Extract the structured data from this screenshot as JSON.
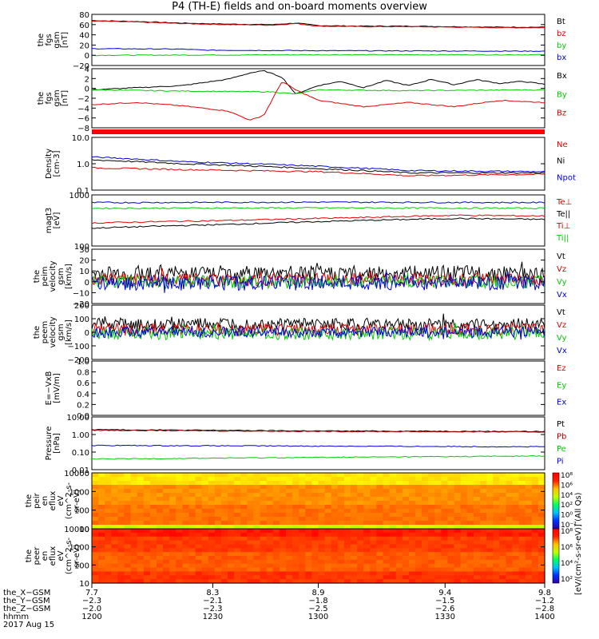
{
  "title": "P4 (TH-E) fields and on-board moments overview",
  "colors": {
    "black": "#000000",
    "red": "#e00000",
    "green": "#00cc00",
    "blue": "#0000dd",
    "darkred": "#aa0000"
  },
  "chart_data": [
    {
      "type": "line",
      "id": "fgs",
      "ylabel_lines": [
        "the",
        "fgs",
        "gsm",
        "[nT]"
      ],
      "ylim": [
        -20,
        80
      ],
      "yticks": [
        "80",
        "60",
        "40",
        "20",
        "0",
        "−20"
      ],
      "legend": [
        {
          "label": "Bt",
          "color": "#000000"
        },
        {
          "label": "bz",
          "color": "#e00000"
        },
        {
          "label": "by",
          "color": "#00cc00"
        },
        {
          "label": "bx",
          "color": "#0000dd"
        }
      ],
      "series": [
        {
          "name": "Bt",
          "color": "#000000",
          "x": [
            0,
            0.1,
            0.2,
            0.3,
            0.4,
            0.45,
            0.5,
            0.6,
            0.7,
            0.8,
            0.9,
            1
          ],
          "y": [
            68,
            66,
            63,
            61,
            60,
            63,
            58,
            57,
            57,
            56,
            55,
            55
          ]
        },
        {
          "name": "bz",
          "color": "#e00000",
          "x": [
            0,
            0.1,
            0.2,
            0.3,
            0.4,
            0.45,
            0.5,
            0.6,
            0.7,
            0.8,
            0.9,
            1
          ],
          "y": [
            67,
            65,
            62,
            60,
            59,
            62,
            57,
            56,
            56,
            55,
            54,
            54
          ]
        },
        {
          "name": "by",
          "color": "#00cc00",
          "x": [
            0,
            0.5,
            1
          ],
          "y": [
            0,
            1,
            1
          ]
        },
        {
          "name": "bx",
          "color": "#0000dd",
          "x": [
            0,
            0.2,
            0.25,
            0.5,
            1
          ],
          "y": [
            13,
            12,
            10,
            9,
            8
          ]
        }
      ]
    },
    {
      "type": "line",
      "id": "fgs_gse",
      "ylabel_lines": [
        "the",
        "fgs",
        "gsm",
        "[nT]"
      ],
      "ylim": [
        -10,
        4
      ],
      "yticks": [
        "4",
        "2",
        "0",
        "−2",
        "−4",
        "−6",
        "−8"
      ],
      "legend": [
        {
          "label": "Bx",
          "color": "#000000"
        },
        {
          "label": "By",
          "color": "#00cc00"
        },
        {
          "label": "Bz",
          "color": "#e00000"
        }
      ],
      "series": [
        {
          "name": "Bx",
          "color": "#000000",
          "x": [
            0,
            0.1,
            0.2,
            0.3,
            0.35,
            0.38,
            0.42,
            0.45,
            0.5,
            0.55,
            0.6,
            0.65,
            0.7,
            0.75,
            0.8,
            0.85,
            0.9,
            0.95,
            1
          ],
          "y": [
            -1,
            -0.5,
            0,
            1.5,
            3,
            3.5,
            2,
            -2,
            0,
            1,
            -0.5,
            1.2,
            0,
            1.5,
            0.2,
            1.4,
            0.5,
            1,
            0.3
          ]
        },
        {
          "name": "By",
          "color": "#00cc00",
          "x": [
            0,
            0.2,
            0.4,
            0.45,
            0.5,
            0.7,
            1
          ],
          "y": [
            -1,
            -1.3,
            -1.5,
            -2,
            -1,
            -1.2,
            -1
          ]
        },
        {
          "name": "Bz",
          "color": "#e00000",
          "x": [
            0,
            0.1,
            0.2,
            0.3,
            0.35,
            0.38,
            0.42,
            0.45,
            0.5,
            0.6,
            0.7,
            0.8,
            0.9,
            1
          ],
          "y": [
            -4.5,
            -4,
            -4.8,
            -6,
            -8.2,
            -7,
            1,
            -1,
            -3.5,
            -5,
            -4,
            -5,
            -3.5,
            -4
          ]
        }
      ]
    },
    {
      "type": "line",
      "id": "density",
      "ylabel_lines": [
        "Density",
        "[cm-3]"
      ],
      "yscale": "log",
      "ylim": [
        0.1,
        10
      ],
      "yticks": [
        "10.0",
        "1.0",
        "0.1"
      ],
      "legend": [
        {
          "label": "Ne",
          "color": "#e00000"
        },
        {
          "label": "Ni",
          "color": "#000000"
        },
        {
          "label": "Npot",
          "color": "#0000dd"
        }
      ],
      "series": [
        {
          "name": "Ne",
          "color": "#e00000",
          "x": [
            0,
            0.2,
            0.5,
            0.7,
            1
          ],
          "y": [
            0.7,
            0.6,
            0.5,
            0.35,
            0.4
          ]
        },
        {
          "name": "Ni",
          "color": "#000000",
          "x": [
            0,
            0.2,
            0.5,
            0.7,
            1
          ],
          "y": [
            1.4,
            1.0,
            0.65,
            0.45,
            0.45
          ]
        },
        {
          "name": "Npot",
          "color": "#0000dd",
          "x": [
            0,
            0.2,
            0.5,
            0.7,
            1
          ],
          "y": [
            1.8,
            1.2,
            0.8,
            0.55,
            0.5
          ]
        }
      ]
    },
    {
      "type": "line",
      "id": "temperature",
      "ylabel_lines": [
        "magt3",
        "[eV]"
      ],
      "yscale": "log",
      "ylim": [
        100,
        10000
      ],
      "yticks": [
        "1000",
        "100"
      ],
      "legend": [
        {
          "label": "Te⊥",
          "color": "#e00000"
        },
        {
          "label": "Te||",
          "color": "#000000"
        },
        {
          "label": "Ti⊥",
          "color": "#e00000"
        },
        {
          "label": "Ti||",
          "color": "#00cc00"
        }
      ],
      "series": [
        {
          "name": "Ti||",
          "color": "#0000dd",
          "x": [
            0,
            0.5,
            1
          ],
          "y": [
            5000,
            5200,
            5000
          ]
        },
        {
          "name": "Ti⊥",
          "color": "#00cc00",
          "x": [
            0,
            0.5,
            1
          ],
          "y": [
            3000,
            3100,
            3000
          ]
        },
        {
          "name": "Te⊥",
          "color": "#e00000",
          "x": [
            0,
            0.3,
            0.6,
            0.8,
            1
          ],
          "y": [
            800,
            1000,
            1300,
            1600,
            1500
          ]
        },
        {
          "name": "Te||",
          "color": "#000000",
          "x": [
            0,
            0.3,
            0.6,
            0.8,
            1
          ],
          "y": [
            500,
            700,
            1000,
            1200,
            1100
          ]
        }
      ]
    },
    {
      "type": "line",
      "id": "peim_velocity",
      "ylabel_lines": [
        "the",
        "peim",
        "velocity",
        "gsm",
        "[km/s]"
      ],
      "ylim": [
        -20,
        30
      ],
      "yticks": [
        "30",
        "20",
        "10",
        "0",
        "−10",
        "−20"
      ],
      "legend": [
        {
          "label": "Vt",
          "color": "#000000"
        },
        {
          "label": "Vz",
          "color": "#e00000"
        },
        {
          "label": "Vy",
          "color": "#00cc00"
        },
        {
          "label": "Vx",
          "color": "#0000dd"
        }
      ],
      "noisy": true,
      "series": [
        {
          "name": "Vt",
          "color": "#000000",
          "base": 8,
          "amp": 7
        },
        {
          "name": "Vz",
          "color": "#e00000",
          "base": 2,
          "amp": 6
        },
        {
          "name": "Vy",
          "color": "#00cc00",
          "base": 0,
          "amp": 6
        },
        {
          "name": "Vx",
          "color": "#0000dd",
          "base": -1,
          "amp": 7
        }
      ]
    },
    {
      "type": "line",
      "id": "peem_velocity",
      "ylabel_lines": [
        "the",
        "peem",
        "velocity",
        "gsm",
        "[km/s]"
      ],
      "ylim": [
        -200,
        200
      ],
      "yticks": [
        "200",
        "100",
        "0",
        "−100",
        "−200"
      ],
      "legend": [
        {
          "label": "Vt",
          "color": "#000000"
        },
        {
          "label": "Vz",
          "color": "#e00000"
        },
        {
          "label": "Vy",
          "color": "#00cc00"
        },
        {
          "label": "Vx",
          "color": "#0000dd"
        }
      ],
      "noisy": true,
      "series": [
        {
          "name": "Vt",
          "color": "#000000",
          "base": 60,
          "amp": 45
        },
        {
          "name": "Vz",
          "color": "#e00000",
          "base": 20,
          "amp": 45
        },
        {
          "name": "Vy",
          "color": "#00cc00",
          "base": -10,
          "amp": 45
        },
        {
          "name": "Vx",
          "color": "#0000dd",
          "base": 0,
          "amp": 40
        }
      ]
    },
    {
      "type": "line",
      "id": "efield",
      "ylabel_lines": [
        "E=−VxB",
        "[mV/m]"
      ],
      "ylim": [
        0,
        1
      ],
      "yticks": [
        "1.0",
        "0.8",
        "0.6",
        "0.4",
        "0.2",
        "0.0"
      ],
      "legend": [
        {
          "label": "Ez",
          "color": "#e00000"
        },
        {
          "label": "Ey",
          "color": "#00cc00"
        },
        {
          "label": "Ex",
          "color": "#0000dd"
        }
      ],
      "series": []
    },
    {
      "type": "line",
      "id": "pressure",
      "ylabel_lines": [
        "Pressure",
        "[nPa]"
      ],
      "yscale": "log",
      "ylim": [
        0.01,
        10
      ],
      "yticks": [
        "10.00",
        "1.00",
        "0.10",
        "0.01"
      ],
      "legend": [
        {
          "label": "Pt",
          "color": "#000000"
        },
        {
          "label": "Pb",
          "color": "#aa0000"
        },
        {
          "label": "Pe",
          "color": "#00cc00"
        },
        {
          "label": "Pi",
          "color": "#0000dd"
        }
      ],
      "series": [
        {
          "name": "Pt",
          "color": "#000000",
          "x": [
            0,
            0.5,
            1
          ],
          "y": [
            1.9,
            1.6,
            1.5
          ]
        },
        {
          "name": "Pb",
          "color": "#aa0000",
          "x": [
            0,
            0.5,
            1
          ],
          "y": [
            1.75,
            1.5,
            1.4
          ]
        },
        {
          "name": "Pi",
          "color": "#0000dd",
          "x": [
            0,
            0.5,
            1
          ],
          "y": [
            0.24,
            0.22,
            0.2
          ]
        },
        {
          "name": "Pe",
          "color": "#00cc00",
          "x": [
            0,
            0.5,
            1
          ],
          "y": [
            0.04,
            0.05,
            0.06
          ]
        }
      ]
    },
    {
      "type": "heatmap",
      "id": "peir_spectrogram",
      "ylabel_lines": [
        "the",
        "peir",
        "en",
        "eflux",
        "eV",
        "(cm^2-s-",
        "sr-eV)"
      ],
      "yscale": "log",
      "ylim": [
        5,
        20000
      ],
      "yticks": [
        "10000",
        "1000",
        "100",
        "10"
      ],
      "colorbar": {
        "label": "[eV/(cm²-s-sr-eV)] (All Qs)",
        "ticks": [
          "10⁸",
          "10⁶",
          "10⁴",
          "10²",
          "10⁰",
          "10⁻²"
        ]
      }
    },
    {
      "type": "heatmap",
      "id": "peer_spectrogram",
      "ylabel_lines": [
        "the",
        "peer",
        "en",
        "eflux",
        "eV",
        "(cm^2-s-",
        "sr-eV)"
      ],
      "yscale": "log",
      "ylim": [
        5,
        20000
      ],
      "yticks": [
        "10000",
        "1000",
        "100",
        "10"
      ],
      "colorbar": {
        "label": "",
        "ticks": [
          "10⁸",
          "10⁶",
          "10⁴",
          "10²"
        ]
      }
    }
  ],
  "xaxis": {
    "rows": [
      {
        "label": "the_X−GSM",
        "values": [
          "7.7",
          "8.3",
          "8.9",
          "9.4",
          "9.8"
        ]
      },
      {
        "label": "the_Y−GSM",
        "values": [
          "−2.3",
          "−2.1",
          "−1.8",
          "−1.5",
          "−1.2"
        ]
      },
      {
        "label": "the_Z−GSM",
        "values": [
          "−2.0",
          "−2.3",
          "−2.5",
          "−2.6",
          "−2.8"
        ]
      },
      {
        "label": "hhmm",
        "values": [
          "1200",
          "1230",
          "1300",
          "1330",
          "1400"
        ]
      }
    ],
    "date": "2017 Aug 15"
  }
}
